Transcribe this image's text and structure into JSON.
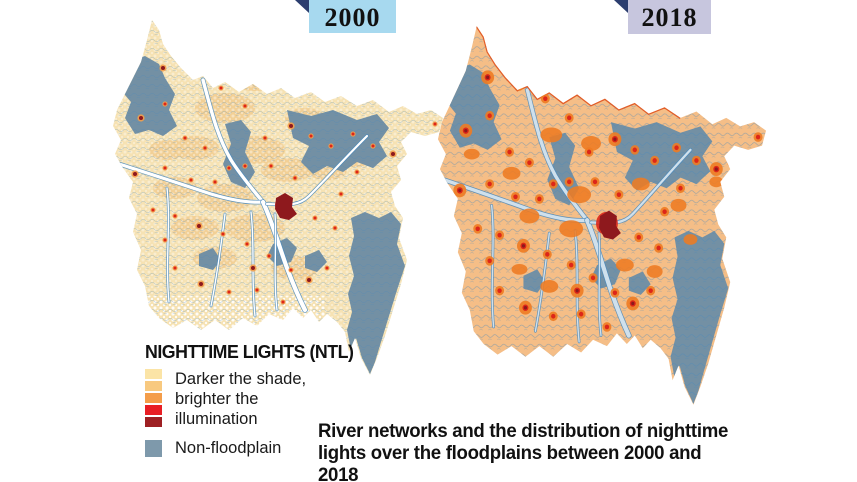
{
  "badges": [
    {
      "year": "2000"
    },
    {
      "year": "2018"
    }
  ],
  "legend": {
    "title": "NIGHTTIME LIGHTS (NTL)",
    "scale_lines": [
      "Darker the shade,",
      "brighter the",
      "illumination"
    ],
    "non_floodplain_label": "Non-floodplain"
  },
  "caption": {
    "lines": [
      "River networks and the distribution of nighttime",
      "lights over the floodplains between 2000 and 2018"
    ]
  },
  "colors": {
    "ntl_scale": [
      "#FBE4A6",
      "#F8C97F",
      "#F49D49",
      "#E81E24",
      "#9E2023"
    ],
    "non_floodplain_legend": "#7E99AB",
    "non_floodplain_map": "#7390A4",
    "river": "#4A89BC",
    "floodplain_2000": "#F6E2B3",
    "floodplain_2000_band": "#F2CE92",
    "floodplain_2018": "#F5BE87",
    "orange_patch": "#EE7B22",
    "red": "#DD2619",
    "dark_red": "#8E191D",
    "badge_2000_bg": "#A7D9EF",
    "badge_2018_bg": "#C7C6DE",
    "flag_triangle": "#2C3E6F"
  }
}
